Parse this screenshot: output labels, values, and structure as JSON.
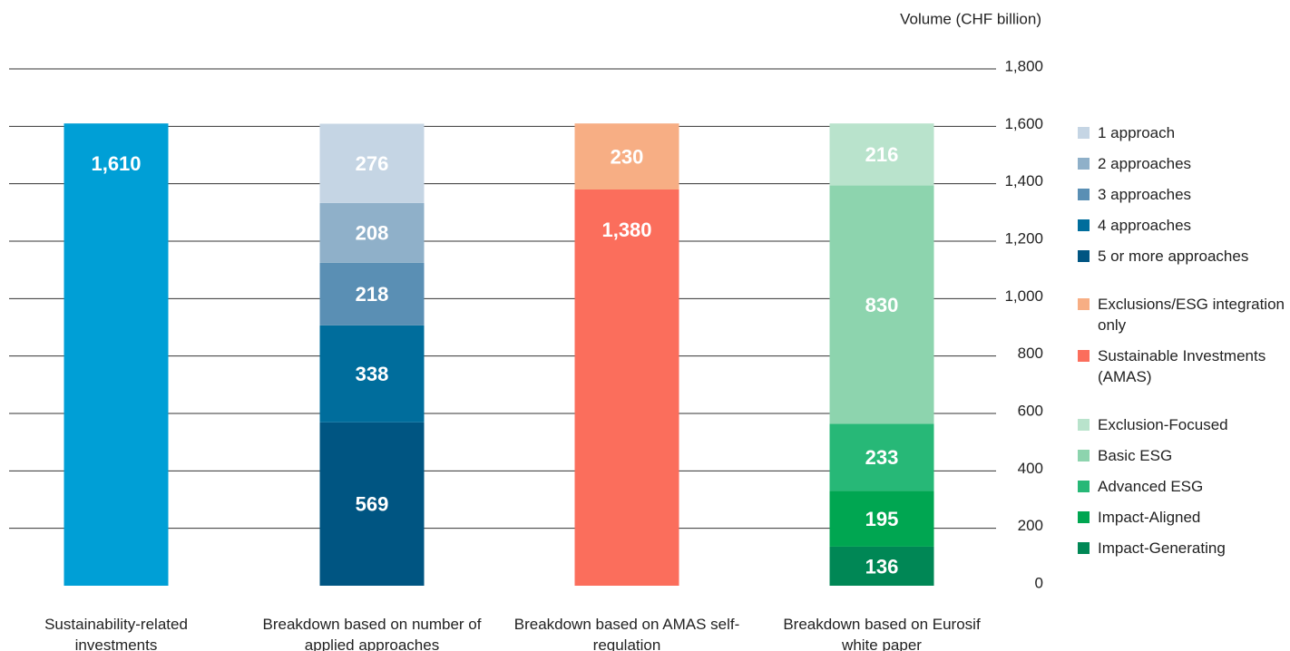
{
  "chart_data": {
    "type": "stacked_bar",
    "y_label": "Volume (CHF billion)",
    "categories": [
      "Sustainability-related investments",
      "Breakdown based on number of applied approaches",
      "Breakdown based on AMAS self-regulation",
      "Breakdown based on Eurosif white paper"
    ],
    "ylim": [
      0,
      1800
    ],
    "yticks": [
      0,
      200,
      400,
      600,
      800,
      {
        "value": 1000,
        "label": "1,000"
      },
      {
        "value": 1200,
        "label": "1,200"
      },
      {
        "value": 1400,
        "label": "1,400"
      },
      {
        "value": 1600,
        "label": "1,600"
      },
      {
        "value": 1800,
        "label": "1,800"
      }
    ],
    "grid": true,
    "legend": "right",
    "series": [
      {
        "color": "#009fd6",
        "values": [
          1610,
          null,
          null,
          null
        ],
        "value_labels": [
          "1,610",
          null,
          null,
          null
        ]
      },
      {
        "name": "1 approach",
        "color": "#c5d5e4",
        "values": [
          null,
          276,
          null,
          null
        ]
      },
      {
        "name": "2 approaches",
        "color": "#8fb0c9",
        "values": [
          null,
          208,
          null,
          null
        ]
      },
      {
        "name": "3 approaches",
        "color": "#5a8fb4",
        "values": [
          null,
          218,
          null,
          null
        ]
      },
      {
        "name": "4 approaches",
        "color": "#006d9c",
        "values": [
          null,
          338,
          null,
          null
        ]
      },
      {
        "name": "5 or more approaches",
        "color": "#005582",
        "values": [
          null,
          569,
          null,
          null
        ]
      },
      {
        "name": "Exclusions/ESG integration only",
        "color": "#f7ae84",
        "values": [
          null,
          null,
          230,
          null
        ]
      },
      {
        "name": "Sustainable Investments (AMAS)",
        "color": "#fb6e5c",
        "values": [
          null,
          null,
          1380,
          null
        ],
        "value_labels": [
          null,
          null,
          "1,380",
          null
        ]
      },
      {
        "name": "Exclusion-Focused",
        "color": "#b9e3cc",
        "values": [
          null,
          null,
          null,
          216
        ]
      },
      {
        "name": "Basic ESG",
        "color": "#8dd4ae",
        "values": [
          null,
          null,
          null,
          830
        ]
      },
      {
        "name": "Advanced ESG",
        "color": "#27b877",
        "values": [
          null,
          null,
          null,
          233
        ]
      },
      {
        "name": "Impact-Aligned",
        "color": "#00a651",
        "values": [
          null,
          null,
          null,
          195
        ]
      },
      {
        "name": "Impact-Generating",
        "color": "#008755",
        "values": [
          null,
          null,
          null,
          136
        ]
      }
    ]
  }
}
